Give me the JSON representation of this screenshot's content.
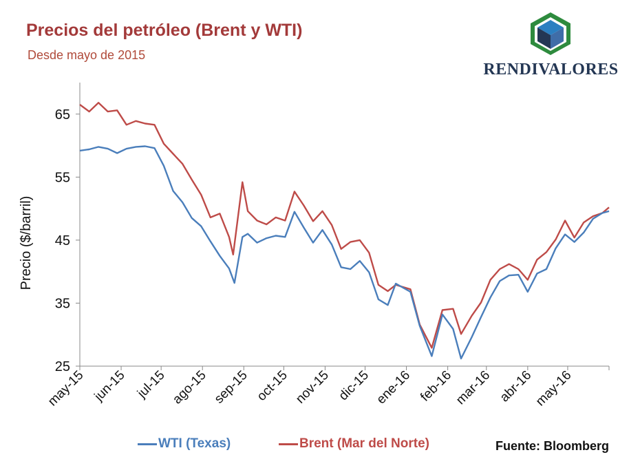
{
  "header": {
    "title": "Precios del petróleo (Brent y WTI)",
    "subtitle": "Desde mayo de 2015"
  },
  "logo": {
    "text": "RENDIVALORES",
    "icon": "cube-logo-icon"
  },
  "source_label": "Fuente: Bloomberg",
  "colors": {
    "wti": "#4a7ebb",
    "brent": "#be4b48",
    "title": "#a33a3a",
    "axis": "#888888"
  },
  "chart_data": {
    "type": "line",
    "ylabel": "Precio ($/barril)",
    "xlabel": "",
    "ylim": [
      25,
      70
    ],
    "yticks": [
      25,
      35,
      45,
      55,
      65
    ],
    "xlim": [
      "2015-05-01",
      "2016-06-01"
    ],
    "xtick_labels": [
      "may-15",
      "jun-15",
      "jul-15",
      "ago-15",
      "sep-15",
      "oct-15",
      "nov-15",
      "dic-15",
      "ene-16",
      "feb-16",
      "mar-16",
      "abr-16",
      "may-16"
    ],
    "xtick_dates": [
      "2015-05-01",
      "2015-06-01",
      "2015-07-01",
      "2015-08-01",
      "2015-09-01",
      "2015-10-01",
      "2015-11-01",
      "2015-12-01",
      "2016-01-01",
      "2016-02-01",
      "2016-03-01",
      "2016-04-01",
      "2016-05-01"
    ],
    "legend_position": "bottom",
    "grid": false,
    "series": [
      {
        "name": "WTI (Texas)",
        "color": "#4a7ebb",
        "points": [
          [
            "2015-05-01",
            59.2
          ],
          [
            "2015-05-08",
            59.4
          ],
          [
            "2015-05-15",
            59.8
          ],
          [
            "2015-05-22",
            59.5
          ],
          [
            "2015-05-29",
            58.8
          ],
          [
            "2015-06-05",
            59.5
          ],
          [
            "2015-06-12",
            59.8
          ],
          [
            "2015-06-19",
            59.9
          ],
          [
            "2015-06-26",
            59.6
          ],
          [
            "2015-07-03",
            56.8
          ],
          [
            "2015-07-10",
            52.8
          ],
          [
            "2015-07-17",
            51.0
          ],
          [
            "2015-07-24",
            48.5
          ],
          [
            "2015-07-31",
            47.2
          ],
          [
            "2015-08-07",
            44.8
          ],
          [
            "2015-08-14",
            42.5
          ],
          [
            "2015-08-21",
            40.5
          ],
          [
            "2015-08-25",
            38.2
          ],
          [
            "2015-08-31",
            45.5
          ],
          [
            "2015-09-04",
            46.0
          ],
          [
            "2015-09-11",
            44.6
          ],
          [
            "2015-09-18",
            45.3
          ],
          [
            "2015-09-25",
            45.7
          ],
          [
            "2015-10-02",
            45.5
          ],
          [
            "2015-10-09",
            49.5
          ],
          [
            "2015-10-16",
            47.0
          ],
          [
            "2015-10-23",
            44.6
          ],
          [
            "2015-10-30",
            46.6
          ],
          [
            "2015-11-06",
            44.3
          ],
          [
            "2015-11-13",
            40.7
          ],
          [
            "2015-11-20",
            40.4
          ],
          [
            "2015-11-27",
            41.7
          ],
          [
            "2015-12-04",
            39.9
          ],
          [
            "2015-12-11",
            35.6
          ],
          [
            "2015-12-18",
            34.7
          ],
          [
            "2015-12-24",
            38.1
          ],
          [
            "2016-01-04",
            36.8
          ],
          [
            "2016-01-11",
            31.4
          ],
          [
            "2016-01-20",
            26.6
          ],
          [
            "2016-01-28",
            33.2
          ],
          [
            "2016-02-05",
            30.9
          ],
          [
            "2016-02-11",
            26.2
          ],
          [
            "2016-02-19",
            29.6
          ],
          [
            "2016-02-26",
            32.8
          ],
          [
            "2016-03-04",
            35.9
          ],
          [
            "2016-03-11",
            38.5
          ],
          [
            "2016-03-18",
            39.4
          ],
          [
            "2016-03-25",
            39.5
          ],
          [
            "2016-04-01",
            36.8
          ],
          [
            "2016-04-08",
            39.7
          ],
          [
            "2016-04-15",
            40.4
          ],
          [
            "2016-04-22",
            43.7
          ],
          [
            "2016-04-29",
            45.9
          ],
          [
            "2016-05-06",
            44.7
          ],
          [
            "2016-05-13",
            46.2
          ],
          [
            "2016-05-20",
            48.4
          ],
          [
            "2016-05-27",
            49.3
          ],
          [
            "2016-06-01",
            49.6
          ]
        ]
      },
      {
        "name": "Brent (Mar del Norte)",
        "color": "#be4b48",
        "points": [
          [
            "2015-05-01",
            66.5
          ],
          [
            "2015-05-08",
            65.4
          ],
          [
            "2015-05-15",
            66.8
          ],
          [
            "2015-05-22",
            65.4
          ],
          [
            "2015-05-29",
            65.6
          ],
          [
            "2015-06-05",
            63.3
          ],
          [
            "2015-06-12",
            63.9
          ],
          [
            "2015-06-19",
            63.5
          ],
          [
            "2015-06-26",
            63.3
          ],
          [
            "2015-07-03",
            60.3
          ],
          [
            "2015-07-10",
            58.7
          ],
          [
            "2015-07-17",
            57.1
          ],
          [
            "2015-07-24",
            54.6
          ],
          [
            "2015-07-31",
            52.2
          ],
          [
            "2015-08-07",
            48.6
          ],
          [
            "2015-08-14",
            49.2
          ],
          [
            "2015-08-21",
            45.5
          ],
          [
            "2015-08-24",
            42.7
          ],
          [
            "2015-08-31",
            54.2
          ],
          [
            "2015-09-04",
            49.6
          ],
          [
            "2015-09-11",
            48.1
          ],
          [
            "2015-09-18",
            47.5
          ],
          [
            "2015-09-25",
            48.6
          ],
          [
            "2015-10-02",
            48.1
          ],
          [
            "2015-10-09",
            52.7
          ],
          [
            "2015-10-16",
            50.5
          ],
          [
            "2015-10-23",
            48.0
          ],
          [
            "2015-10-30",
            49.6
          ],
          [
            "2015-11-06",
            47.4
          ],
          [
            "2015-11-13",
            43.6
          ],
          [
            "2015-11-20",
            44.7
          ],
          [
            "2015-11-27",
            45.0
          ],
          [
            "2015-12-04",
            43.0
          ],
          [
            "2015-12-11",
            37.9
          ],
          [
            "2015-12-18",
            36.9
          ],
          [
            "2015-12-24",
            37.9
          ],
          [
            "2016-01-04",
            37.2
          ],
          [
            "2016-01-11",
            31.6
          ],
          [
            "2016-01-20",
            27.9
          ],
          [
            "2016-01-28",
            33.9
          ],
          [
            "2016-02-05",
            34.1
          ],
          [
            "2016-02-11",
            30.1
          ],
          [
            "2016-02-19",
            33.0
          ],
          [
            "2016-02-26",
            35.1
          ],
          [
            "2016-03-04",
            38.7
          ],
          [
            "2016-03-11",
            40.4
          ],
          [
            "2016-03-18",
            41.2
          ],
          [
            "2016-03-25",
            40.4
          ],
          [
            "2016-04-01",
            38.7
          ],
          [
            "2016-04-08",
            41.9
          ],
          [
            "2016-04-15",
            43.1
          ],
          [
            "2016-04-22",
            45.1
          ],
          [
            "2016-04-29",
            48.1
          ],
          [
            "2016-05-06",
            45.4
          ],
          [
            "2016-05-13",
            47.8
          ],
          [
            "2016-05-20",
            48.8
          ],
          [
            "2016-05-27",
            49.3
          ],
          [
            "2016-06-01",
            50.2
          ]
        ]
      }
    ]
  }
}
